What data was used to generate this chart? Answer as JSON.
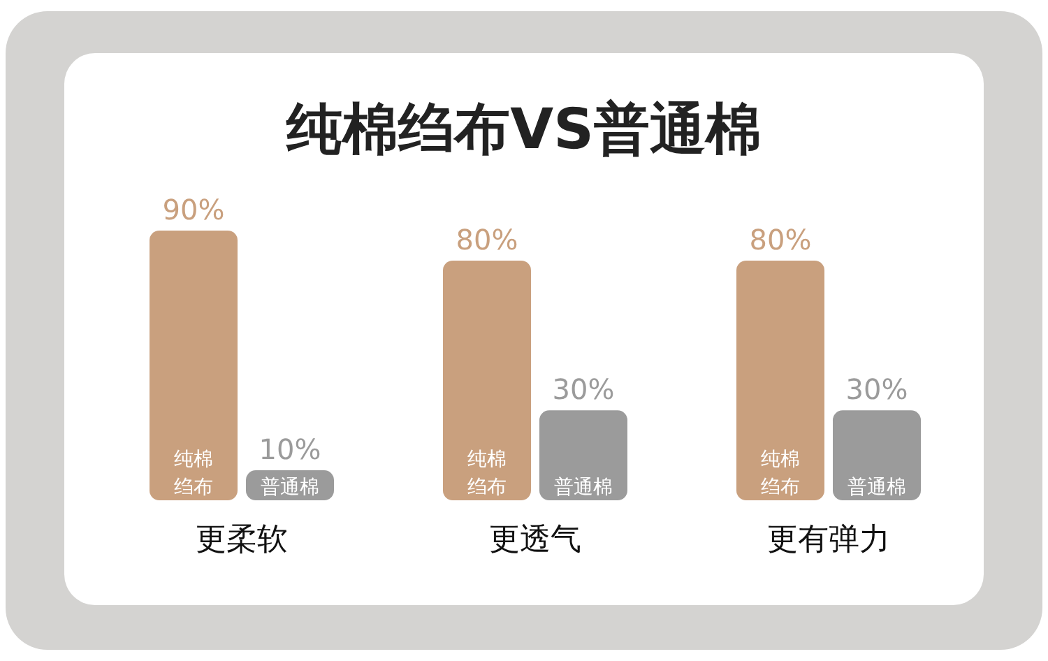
{
  "chart_data": {
    "type": "bar",
    "title": "纯棉绉布VS普通棉",
    "categories": [
      "更柔软",
      "更透气",
      "更有弹力"
    ],
    "series": [
      {
        "name": "纯棉绉布",
        "color": "#c9a07e",
        "values": [
          90,
          80,
          80
        ],
        "value_labels": [
          "90%",
          "80%",
          "80%"
        ]
      },
      {
        "name": "普通棉",
        "color": "#9b9b9b",
        "values": [
          10,
          30,
          30
        ],
        "value_labels": [
          "10%",
          "30%",
          "30%"
        ]
      }
    ]
  }
}
